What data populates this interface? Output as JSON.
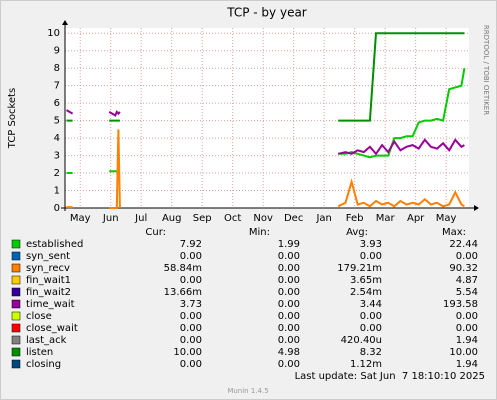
{
  "chart_data": {
    "type": "line",
    "title": "TCP - by year",
    "ylabel": "TCP Sockets",
    "side_text": "RRDTOOL / TOBI OETIKER",
    "columns": [
      "Cur:",
      "Min:",
      "Avg:",
      "Max:"
    ],
    "last_update": "Last update: Sat Jun  7 18:10:10 2025",
    "version": "Munin 1.4.5",
    "grid": true,
    "ylim": [
      0,
      10.3
    ],
    "yticks": [
      0,
      1,
      2,
      3,
      4,
      5,
      6,
      7,
      8,
      9,
      10
    ],
    "xlim": [
      -0.5,
      12.75
    ],
    "xticks": [
      {
        "value": 0,
        "label": "May"
      },
      {
        "value": 1,
        "label": "Jun"
      },
      {
        "value": 2,
        "label": "Jul"
      },
      {
        "value": 3,
        "label": "Aug"
      },
      {
        "value": 4,
        "label": "Sep"
      },
      {
        "value": 5,
        "label": "Oct"
      },
      {
        "value": 6,
        "label": "Nov"
      },
      {
        "value": 7,
        "label": "Dec"
      },
      {
        "value": 8,
        "label": "Jan"
      },
      {
        "value": 9,
        "label": "Feb"
      },
      {
        "value": 10,
        "label": "Mar"
      },
      {
        "value": 11,
        "label": "Apr"
      },
      {
        "value": 12,
        "label": "May"
      }
    ],
    "x": [
      -0.45,
      -0.25,
      0.5,
      0.95,
      1.15,
      1.2,
      1.25,
      1.3,
      4,
      8.46,
      8.7,
      8.9,
      9.1,
      9.3,
      9.5,
      9.7,
      9.9,
      10.1,
      10.3,
      10.5,
      10.7,
      10.9,
      11.1,
      11.3,
      11.5,
      11.7,
      11.9,
      12.1,
      12.3,
      12.5,
      12.6
    ],
    "series": [
      {
        "name": "established",
        "color": "#00cc00",
        "cur": "7.92",
        "min": "1.99",
        "avg": "3.93",
        "max": "22.44",
        "values": [
          2,
          2,
          null,
          2.1,
          2.1,
          2.1,
          2.1,
          2.1,
          null,
          3.1,
          3.1,
          3.2,
          3.1,
          3.0,
          2.9,
          3.0,
          3.0,
          3.0,
          4.0,
          4.0,
          4.1,
          4.1,
          4.9,
          5.0,
          5.0,
          5.1,
          5.0,
          6.8,
          6.9,
          7.0,
          8.0
        ]
      },
      {
        "name": "syn_sent",
        "color": "#0066b3",
        "cur": "0.00",
        "min": "0.00",
        "avg": "0.00",
        "max": "0.00"
      },
      {
        "name": "syn_recv",
        "color": "#ff8000",
        "cur": "58.84m",
        "min": "0.00",
        "avg": "179.21m",
        "max": "90.32",
        "values": [
          0.05,
          0.05,
          null,
          0,
          0,
          0,
          4.5,
          0,
          null,
          0.1,
          0.3,
          1.5,
          0.2,
          0.3,
          0.1,
          0.4,
          0.2,
          0.3,
          0.1,
          0.4,
          0.2,
          0.3,
          0.2,
          0.5,
          0.2,
          0.3,
          0.1,
          0.2,
          0.9,
          0.2,
          0.1
        ]
      },
      {
        "name": "fin_wait1",
        "color": "#ffcc00",
        "cur": "0.00",
        "min": "0.00",
        "avg": "3.65m",
        "max": "4.87"
      },
      {
        "name": "fin_wait2",
        "color": "#330099",
        "cur": "13.66m",
        "min": "0.00",
        "avg": "2.54m",
        "max": "5.54"
      },
      {
        "name": "time_wait",
        "color": "#990099",
        "cur": "3.73",
        "min": "0.00",
        "avg": "3.44",
        "max": "193.58",
        "values": [
          5.6,
          5.4,
          null,
          5.5,
          5.3,
          5.5,
          5.4,
          5.5,
          null,
          3.1,
          3.2,
          3.1,
          3.3,
          3.2,
          3.5,
          3.1,
          3.6,
          3.2,
          3.8,
          3.3,
          3.5,
          3.6,
          3.4,
          3.9,
          3.5,
          3.4,
          3.7,
          3.3,
          3.9,
          3.5,
          3.6
        ]
      },
      {
        "name": "close",
        "color": "#ccff00",
        "cur": "0.00",
        "min": "0.00",
        "avg": "0.00",
        "max": "0.00"
      },
      {
        "name": "close_wait",
        "color": "#ff0000",
        "cur": "0.00",
        "min": "0.00",
        "avg": "0.00",
        "max": "0.00"
      },
      {
        "name": "last_ack",
        "color": "#808080",
        "cur": "0.00",
        "min": "0.00",
        "avg": "420.40u",
        "max": "1.94"
      },
      {
        "name": "listen",
        "color": "#008f00",
        "cur": "10.00",
        "min": "4.98",
        "avg": "8.32",
        "max": "10.00",
        "values": [
          5,
          5,
          null,
          5,
          5,
          5,
          5,
          5,
          null,
          5,
          5,
          5,
          5,
          5,
          5,
          10,
          10,
          10,
          10,
          10,
          10,
          10,
          10,
          10,
          10,
          10,
          10,
          10,
          10,
          10,
          10
        ]
      },
      {
        "name": "closing",
        "color": "#00487d",
        "cur": "0.00",
        "min": "0.00",
        "avg": "1.12m",
        "max": "1.94"
      }
    ]
  }
}
